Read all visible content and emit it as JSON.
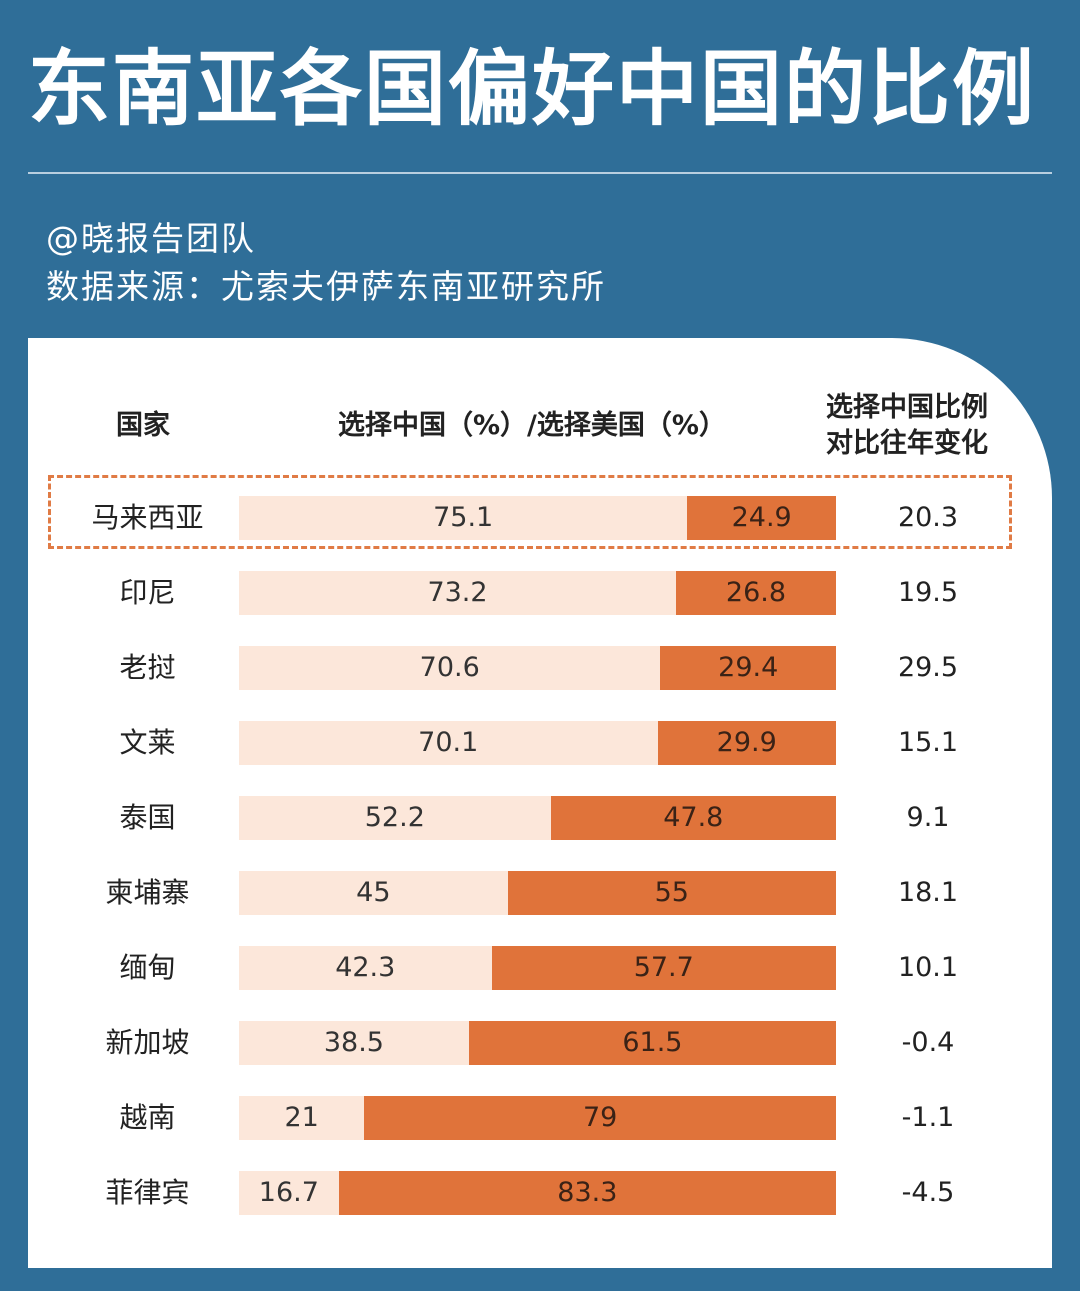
{
  "title": "东南亚各国偏好中国的比例",
  "credit": "@晓报告团队",
  "source": "数据来源：尤索夫伊萨东南亚研究所",
  "headers": {
    "country": "国家",
    "split": "选择中国（%）/选择美国（%）",
    "change_line1": "选择中国比例",
    "change_line2": "对比往年变化"
  },
  "colors": {
    "background": "#2f6e98",
    "china_segment": "#fce7da",
    "us_segment": "#e0733a",
    "highlight_border": "#e07b45"
  },
  "chart_data": {
    "type": "bar",
    "orientation": "horizontal-stacked",
    "title": "东南亚各国偏好中国的比例",
    "categories": [
      "马来西亚",
      "印尼",
      "老挝",
      "文莱",
      "泰国",
      "柬埔寨",
      "缅甸",
      "新加坡",
      "越南",
      "菲律宾"
    ],
    "series": [
      {
        "name": "选择中国（%）",
        "values": [
          "75.1",
          "73.2",
          "70.6",
          "70.1",
          "52.2",
          "45",
          "42.3",
          "38.5",
          "21",
          "16.7"
        ]
      },
      {
        "name": "选择美国（%）",
        "values": [
          "24.9",
          "26.8",
          "29.4",
          "29.9",
          "47.8",
          "55",
          "57.7",
          "61.5",
          "79",
          "83.3"
        ]
      }
    ],
    "change": [
      "20.3",
      "19.5",
      "29.5",
      "15.1",
      "9.1",
      "18.1",
      "10.1",
      "-0.4",
      "-1.1",
      "-4.5"
    ],
    "highlighted_category": "马来西亚",
    "xlim": [
      0,
      100
    ]
  }
}
